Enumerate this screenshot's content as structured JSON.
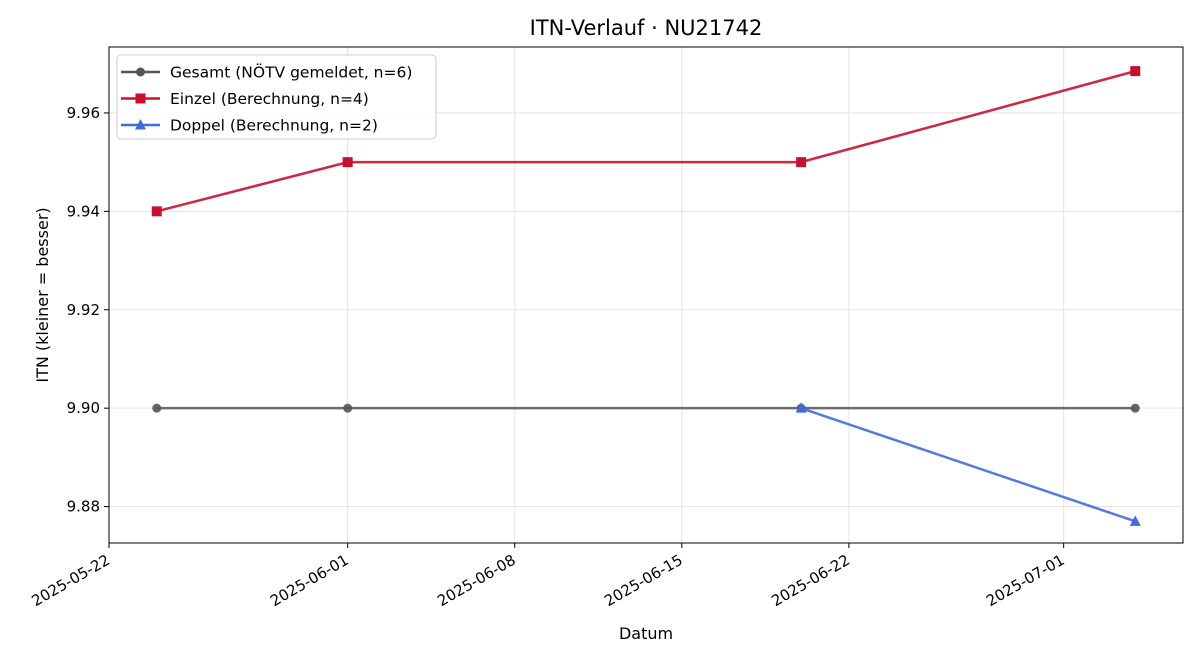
{
  "chart_data": {
    "type": "line",
    "title": "ITN-Verlauf · NU21742",
    "xlabel": "Datum",
    "ylabel": "ITN  (kleiner = besser)",
    "x_tick_labels": [
      "2025-05-22",
      "2025-06-01",
      "2025-06-08",
      "2025-06-15",
      "2025-06-22",
      "2025-07-01"
    ],
    "x_ticks": [
      "2025-05-22",
      "2025-06-01",
      "2025-06-08",
      "2025-06-15",
      "2025-06-22",
      "2025-07-01"
    ],
    "xlim": [
      "2025-05-22",
      "2025-07-06"
    ],
    "y_tick_labels": [
      "9.88",
      "9.90",
      "9.92",
      "9.94",
      "9.96"
    ],
    "y_ticks": [
      9.88,
      9.9,
      9.92,
      9.94,
      9.96
    ],
    "ylim": [
      9.8726,
      9.9734
    ],
    "grid": true,
    "legend_position": "top-left",
    "series": [
      {
        "name": "Gesamt (NÖTV gemeldet, n=6)",
        "color": "#555555",
        "marker": "circle",
        "x": [
          "2025-05-24",
          "2025-06-01",
          "2025-06-20",
          "2025-07-04"
        ],
        "y": [
          9.9,
          9.9,
          9.9,
          9.9
        ]
      },
      {
        "name": "Einzel (Berechnung, n=4)",
        "color": "#c8102e",
        "marker": "square",
        "x": [
          "2025-05-24",
          "2025-06-01",
          "2025-06-20",
          "2025-07-04"
        ],
        "y": [
          9.94,
          9.95,
          9.95,
          9.9685
        ]
      },
      {
        "name": "Doppel (Berechnung, n=2)",
        "color": "#4169e1",
        "marker": "triangle",
        "x": [
          "2025-06-20",
          "2025-07-04"
        ],
        "y": [
          9.9,
          9.877
        ]
      }
    ]
  }
}
